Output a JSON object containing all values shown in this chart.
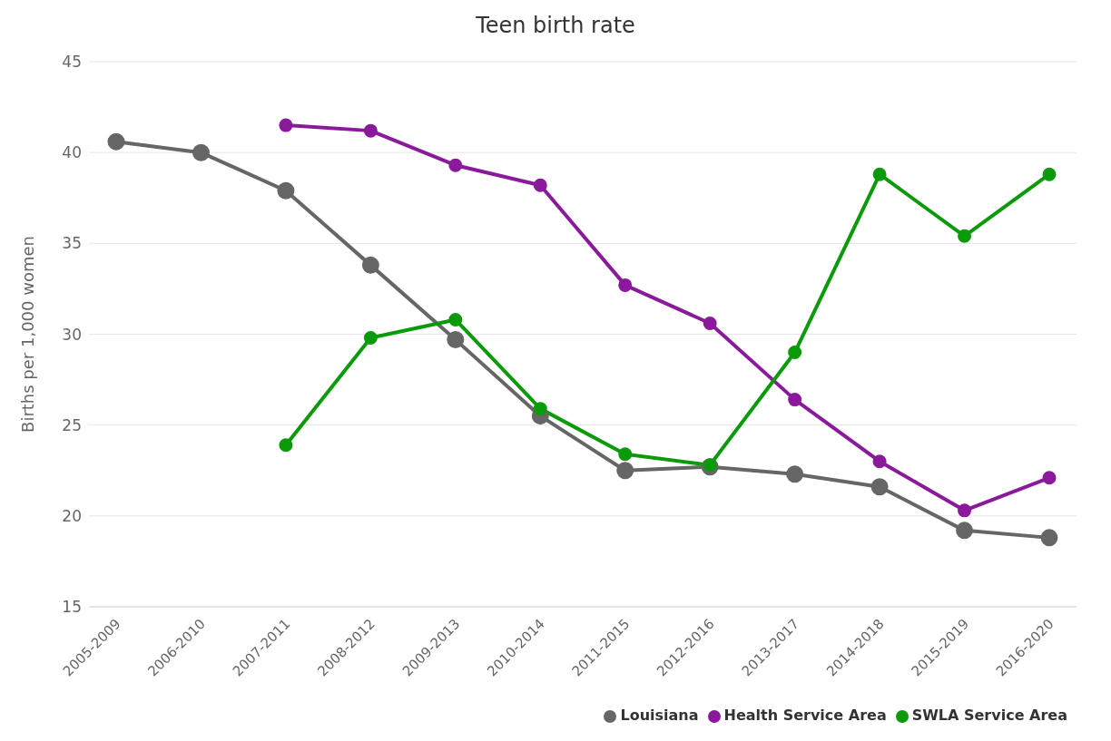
{
  "chart_data": {
    "type": "line",
    "title": "Teen birth rate",
    "ylabel": "Births per 1,000 women",
    "categories": [
      "2005-2009",
      "2006-2010",
      "2007-2011",
      "2008-2012",
      "2009-2013",
      "2010-2014",
      "2011-2015",
      "2012-2016",
      "2013-2017",
      "2014-2018",
      "2015-2019",
      "2016-2020"
    ],
    "series": [
      {
        "name": "Louisiana",
        "color": "#666666",
        "values": [
          40.6,
          40.0,
          37.9,
          33.8,
          29.7,
          25.5,
          22.5,
          22.7,
          22.3,
          21.6,
          19.2,
          18.8
        ]
      },
      {
        "name": "Health Service Area",
        "color": "#8a1a9b",
        "values": [
          null,
          null,
          41.5,
          41.2,
          39.3,
          38.2,
          32.7,
          30.6,
          26.4,
          23.0,
          20.3,
          22.1
        ]
      },
      {
        "name": "SWLA Service Area",
        "color": "#0a9a0a",
        "values": [
          null,
          null,
          23.9,
          29.8,
          30.8,
          25.9,
          23.4,
          22.8,
          29.0,
          38.8,
          35.4,
          38.8
        ]
      }
    ],
    "ylim": [
      15,
      45
    ],
    "yticks": [
      15,
      20,
      25,
      30,
      35,
      40,
      45
    ],
    "grid": "y",
    "legend": "bottom right",
    "marker": "circle",
    "line_style": "solid"
  }
}
